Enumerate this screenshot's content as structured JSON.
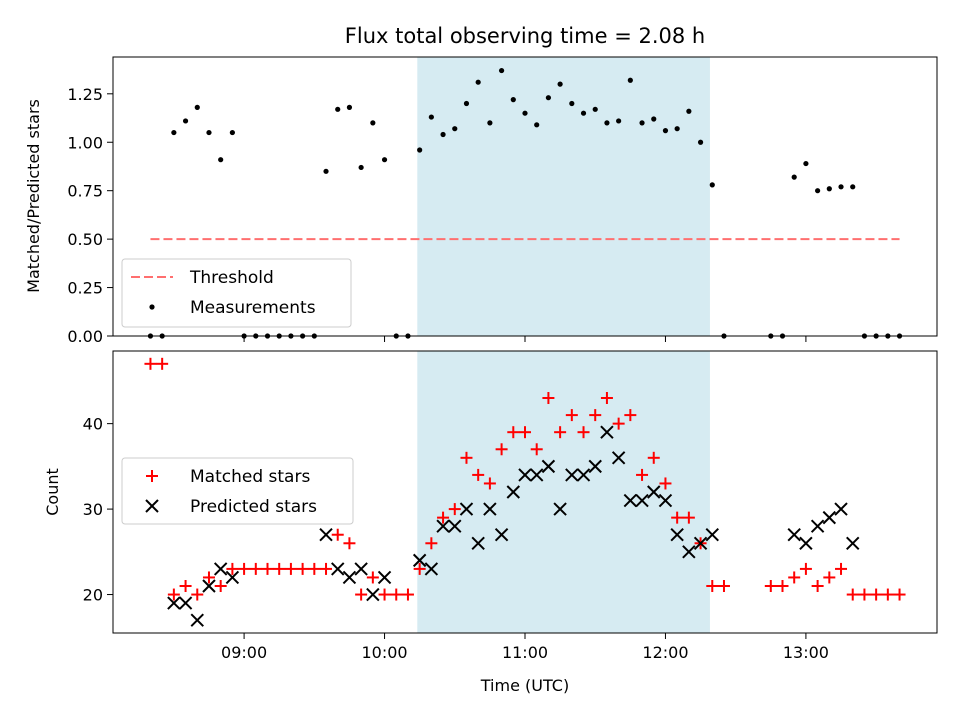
{
  "chart_data": [
    {
      "type": "scatter",
      "title": "Flux total observing time = 2.08 h",
      "xlabel": "",
      "ylabel": "Matched/Predicted stars",
      "xlim": [
        "08:04",
        "13:56"
      ],
      "ylim": [
        0,
        1.44
      ],
      "yticks": [
        "0.00",
        "0.25",
        "0.50",
        "0.75",
        "1.00",
        "1.25"
      ],
      "xticks": [
        "09:00",
        "10:00",
        "11:00",
        "12:00",
        "13:00"
      ],
      "shaded_region": {
        "start": "10:14",
        "end": "12:19",
        "color": "#add8e6"
      },
      "threshold": {
        "name": "Threshold",
        "value": 0.5,
        "x_start": "08:20",
        "x_end": "13:40",
        "color": "#ff6f6f"
      },
      "legend_placement": "lower-left",
      "series": [
        {
          "name": "Measurements",
          "color": "#000000",
          "points": [
            [
              "08:20",
              0.0
            ],
            [
              "08:25",
              0.0
            ],
            [
              "08:30",
              1.05
            ],
            [
              "08:35",
              1.11
            ],
            [
              "08:40",
              1.18
            ],
            [
              "08:45",
              1.05
            ],
            [
              "08:50",
              0.91
            ],
            [
              "08:55",
              1.05
            ],
            [
              "09:00",
              0.0
            ],
            [
              "09:05",
              0.0
            ],
            [
              "09:10",
              0.0
            ],
            [
              "09:15",
              0.0
            ],
            [
              "09:20",
              0.0
            ],
            [
              "09:25",
              0.0
            ],
            [
              "09:30",
              0.0
            ],
            [
              "09:35",
              0.85
            ],
            [
              "09:40",
              1.17
            ],
            [
              "09:45",
              1.18
            ],
            [
              "09:50",
              0.87
            ],
            [
              "09:55",
              1.1
            ],
            [
              "10:00",
              0.91
            ],
            [
              "10:05",
              0.0
            ],
            [
              "10:10",
              0.0
            ],
            [
              "10:15",
              0.96
            ],
            [
              "10:20",
              1.13
            ],
            [
              "10:25",
              1.04
            ],
            [
              "10:30",
              1.07
            ],
            [
              "10:35",
              1.2
            ],
            [
              "10:40",
              1.31
            ],
            [
              "10:45",
              1.1
            ],
            [
              "10:50",
              1.37
            ],
            [
              "10:55",
              1.22
            ],
            [
              "11:00",
              1.15
            ],
            [
              "11:05",
              1.09
            ],
            [
              "11:10",
              1.23
            ],
            [
              "11:15",
              1.3
            ],
            [
              "11:20",
              1.2
            ],
            [
              "11:25",
              1.15
            ],
            [
              "11:30",
              1.17
            ],
            [
              "11:35",
              1.1
            ],
            [
              "11:40",
              1.11
            ],
            [
              "11:45",
              1.32
            ],
            [
              "11:50",
              1.1
            ],
            [
              "11:55",
              1.12
            ],
            [
              "12:00",
              1.06
            ],
            [
              "12:05",
              1.07
            ],
            [
              "12:10",
              1.16
            ],
            [
              "12:15",
              1.0
            ],
            [
              "12:20",
              0.78
            ],
            [
              "12:25",
              0.0
            ],
            [
              "12:45",
              0.0
            ],
            [
              "12:50",
              0.0
            ],
            [
              "12:55",
              0.82
            ],
            [
              "13:00",
              0.89
            ],
            [
              "13:05",
              0.75
            ],
            [
              "13:10",
              0.76
            ],
            [
              "13:15",
              0.77
            ],
            [
              "13:20",
              0.77
            ],
            [
              "13:25",
              0.0
            ],
            [
              "13:30",
              0.0
            ],
            [
              "13:35",
              0.0
            ],
            [
              "13:40",
              0.0
            ]
          ]
        }
      ]
    },
    {
      "type": "scatter",
      "title": "",
      "xlabel": "Time (UTC)",
      "ylabel": "Count",
      "xlim": [
        "08:04",
        "13:56"
      ],
      "ylim": [
        15.5,
        48.5
      ],
      "yticks": [
        "20",
        "30",
        "40"
      ],
      "xticks": [
        "09:00",
        "10:00",
        "11:00",
        "12:00",
        "13:00"
      ],
      "shaded_region": {
        "start": "10:14",
        "end": "12:19",
        "color": "#add8e6"
      },
      "legend_placement": "center-left",
      "series": [
        {
          "name": "Matched stars",
          "color": "#ff0000",
          "marker": "plus",
          "points": [
            [
              "08:20",
              47
            ],
            [
              "08:25",
              47
            ],
            [
              "08:30",
              20
            ],
            [
              "08:35",
              21
            ],
            [
              "08:40",
              20
            ],
            [
              "08:45",
              22
            ],
            [
              "08:50",
              21
            ],
            [
              "08:55",
              23
            ],
            [
              "09:00",
              23
            ],
            [
              "09:05",
              23
            ],
            [
              "09:10",
              23
            ],
            [
              "09:15",
              23
            ],
            [
              "09:20",
              23
            ],
            [
              "09:25",
              23
            ],
            [
              "09:30",
              23
            ],
            [
              "09:35",
              23
            ],
            [
              "09:40",
              27
            ],
            [
              "09:45",
              26
            ],
            [
              "09:50",
              20
            ],
            [
              "09:55",
              22
            ],
            [
              "10:00",
              20
            ],
            [
              "10:05",
              20
            ],
            [
              "10:10",
              20
            ],
            [
              "10:15",
              23
            ],
            [
              "10:20",
              26
            ],
            [
              "10:25",
              29
            ],
            [
              "10:30",
              30
            ],
            [
              "10:35",
              36
            ],
            [
              "10:40",
              34
            ],
            [
              "10:45",
              33
            ],
            [
              "10:50",
              37
            ],
            [
              "10:55",
              39
            ],
            [
              "11:00",
              39
            ],
            [
              "11:05",
              37
            ],
            [
              "11:10",
              43
            ],
            [
              "11:15",
              39
            ],
            [
              "11:20",
              41
            ],
            [
              "11:25",
              39
            ],
            [
              "11:30",
              41
            ],
            [
              "11:35",
              43
            ],
            [
              "11:40",
              40
            ],
            [
              "11:45",
              41
            ],
            [
              "11:50",
              34
            ],
            [
              "11:55",
              36
            ],
            [
              "12:00",
              33
            ],
            [
              "12:05",
              29
            ],
            [
              "12:10",
              29
            ],
            [
              "12:15",
              26
            ],
            [
              "12:20",
              21
            ],
            [
              "12:25",
              21
            ],
            [
              "12:45",
              21
            ],
            [
              "12:50",
              21
            ],
            [
              "12:55",
              22
            ],
            [
              "13:00",
              23
            ],
            [
              "13:05",
              21
            ],
            [
              "13:10",
              22
            ],
            [
              "13:15",
              23
            ],
            [
              "13:20",
              20
            ],
            [
              "13:25",
              20
            ],
            [
              "13:30",
              20
            ],
            [
              "13:35",
              20
            ],
            [
              "13:40",
              20
            ]
          ]
        },
        {
          "name": "Predicted stars",
          "color": "#000000",
          "marker": "x",
          "points": [
            [
              "08:30",
              19
            ],
            [
              "08:35",
              19
            ],
            [
              "08:40",
              17
            ],
            [
              "08:45",
              21
            ],
            [
              "08:50",
              23
            ],
            [
              "08:55",
              22
            ],
            [
              "09:35",
              27
            ],
            [
              "09:40",
              23
            ],
            [
              "09:45",
              22
            ],
            [
              "09:50",
              23
            ],
            [
              "09:55",
              20
            ],
            [
              "10:00",
              22
            ],
            [
              "10:15",
              24
            ],
            [
              "10:20",
              23
            ],
            [
              "10:25",
              28
            ],
            [
              "10:30",
              28
            ],
            [
              "10:35",
              30
            ],
            [
              "10:40",
              26
            ],
            [
              "10:45",
              30
            ],
            [
              "10:50",
              27
            ],
            [
              "10:55",
              32
            ],
            [
              "11:00",
              34
            ],
            [
              "11:05",
              34
            ],
            [
              "11:10",
              35
            ],
            [
              "11:15",
              30
            ],
            [
              "11:20",
              34
            ],
            [
              "11:25",
              34
            ],
            [
              "11:30",
              35
            ],
            [
              "11:35",
              39
            ],
            [
              "11:40",
              36
            ],
            [
              "11:45",
              31
            ],
            [
              "11:50",
              31
            ],
            [
              "11:55",
              32
            ],
            [
              "12:00",
              31
            ],
            [
              "12:05",
              27
            ],
            [
              "12:10",
              25
            ],
            [
              "12:15",
              26
            ],
            [
              "12:20",
              27
            ],
            [
              "12:55",
              27
            ],
            [
              "13:00",
              26
            ],
            [
              "13:05",
              28
            ],
            [
              "13:10",
              29
            ],
            [
              "13:15",
              30
            ],
            [
              "13:20",
              26
            ]
          ]
        }
      ]
    }
  ]
}
